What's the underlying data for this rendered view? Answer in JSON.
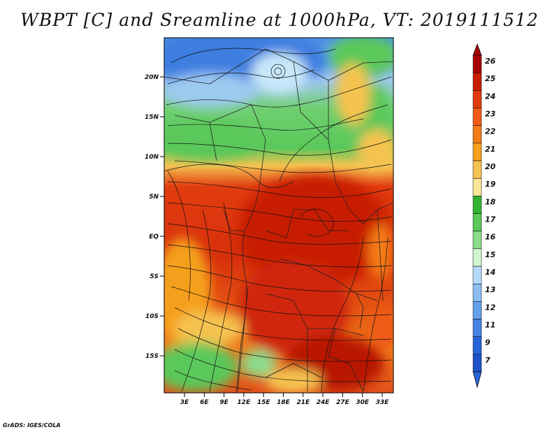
{
  "title": "WBPT [C] and Sreamline at 1000hPa, VT: 2019111512",
  "credit": "GrADS: IGES/COLA",
  "lat_ticks": [
    "20N",
    "15N",
    "10N",
    "5N",
    "EQ",
    "5S",
    "10S",
    "15S"
  ],
  "lon_ticks": [
    "3E",
    "6E",
    "9E",
    "12E",
    "15E",
    "18E",
    "21E",
    "24E",
    "27E",
    "30E",
    "33E"
  ],
  "colorbar": {
    "levels": [
      "26",
      "25",
      "24",
      "23",
      "22",
      "21",
      "20",
      "19",
      "18",
      "17",
      "16",
      "15",
      "14",
      "13",
      "12",
      "11",
      "9",
      "7"
    ],
    "colors": [
      "#a50000",
      "#c81e00",
      "#e13c0f",
      "#f05a14",
      "#f57d19",
      "#f5a01e",
      "#f5c350",
      "#fae696",
      "#32b432",
      "#5ac85a",
      "#8cdc8c",
      "#d2f5d2",
      "#b4dcfa",
      "#8cbef0",
      "#64a0eb",
      "#4682e6",
      "#2864d7",
      "#1e50c8"
    ],
    "under_color": "#2864d7",
    "over_color": "#a50000"
  }
}
